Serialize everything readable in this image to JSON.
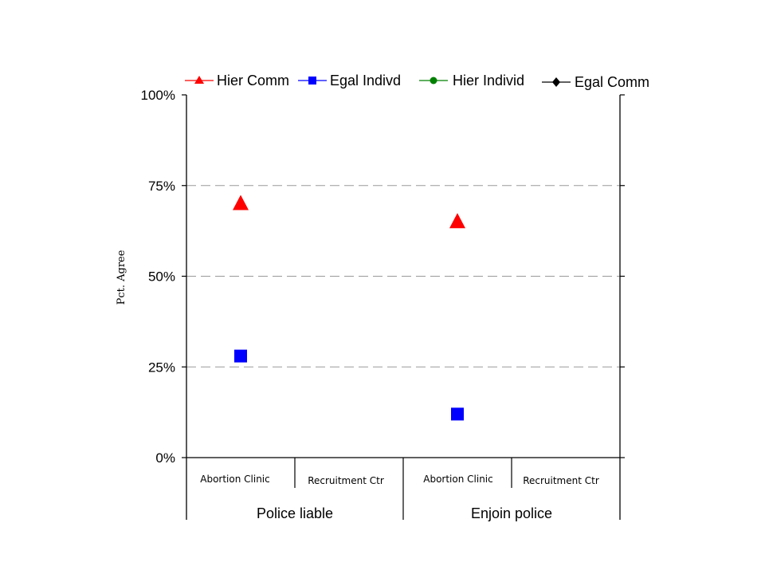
{
  "chart_data": {
    "type": "scatter",
    "ylabel": "Pct. Agree",
    "ylim": [
      0,
      100
    ],
    "y_ticks": [
      "0%",
      "25%",
      "50%",
      "75%",
      "100%"
    ],
    "y_tick_values": [
      0,
      25,
      50,
      75,
      100
    ],
    "grid": "dashed horizontal at 25% intervals",
    "legend_position": "top",
    "categories": [
      "Abortion Clinic",
      "Recruitment Ctr",
      "Abortion Clinic",
      "Recruitment Ctr"
    ],
    "groups": [
      "Police liable",
      "Enjoin police"
    ],
    "series": [
      {
        "name": "Hier Comm",
        "marker": "triangle",
        "color": "#ff0000",
        "values": [
          70,
          null,
          65,
          null
        ]
      },
      {
        "name": "Egal Indivd",
        "marker": "square",
        "color": "#0000ff",
        "values": [
          28,
          null,
          12,
          null
        ]
      },
      {
        "name": "Hier Individ",
        "marker": "circle",
        "color": "#008000",
        "values": [
          null,
          null,
          null,
          null
        ]
      },
      {
        "name": "Egal Comm",
        "marker": "diamond",
        "color": "#000000",
        "values": [
          null,
          null,
          null,
          null
        ]
      }
    ]
  }
}
